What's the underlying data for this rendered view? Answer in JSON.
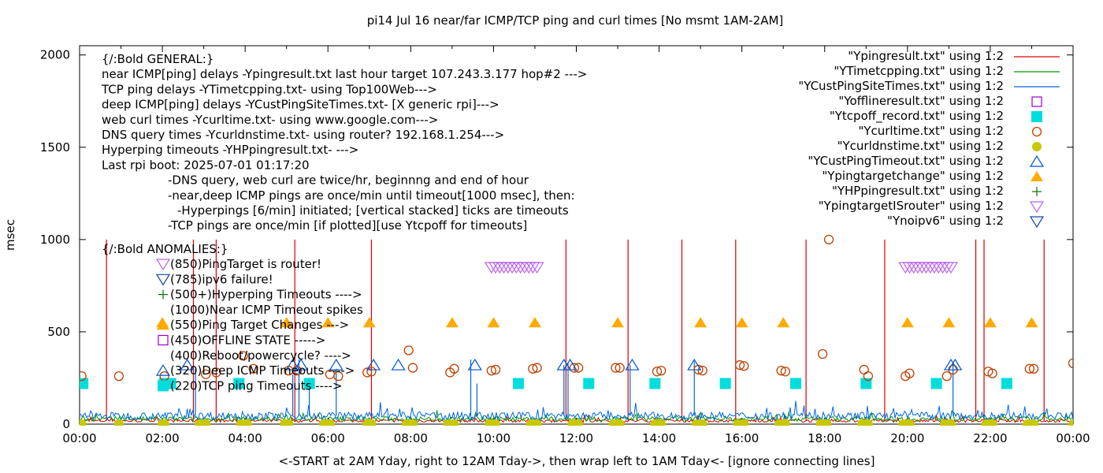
{
  "chart_data": {
    "type": "line",
    "title": "pi14 Jul 16  near/far ICMP/TCP ping and curl times [No msmt 1AM-2AM]",
    "xlabel": "<-START at 2AM Yday, right to 12AM Tday->, then wrap left to 1AM Tday<- [ignore connecting lines]",
    "ylabel": "msec",
    "xlim": [
      0,
      24
    ],
    "ylim": [
      0,
      2050
    ],
    "grid": false,
    "legend_position": "top-right",
    "x_tick_labels": [
      "00:00",
      "02:00",
      "04:00",
      "06:00",
      "08:00",
      "10:00",
      "12:00",
      "14:00",
      "16:00",
      "18:00",
      "20:00",
      "22:00",
      "00:00"
    ],
    "y_tick_values": [
      0,
      500,
      1000,
      1500,
      2000
    ],
    "y_tick_labels": [
      "0",
      "500",
      "1000",
      "1500",
      "2000"
    ],
    "annotation_lines": [
      "{/:Bold GENERAL:}",
      "near ICMP[ping] delays -Ypingresult.txt last hour target 107.243.3.177 hop#2 --->",
      "TCP ping delays -YTimetcpping.txt- using Top100Web--->",
      "deep ICMP[ping] delays -YCustPingSiteTimes.txt- [X generic rpi]--->",
      "web curl times -Ycurltime.txt- using www.google.com--->",
      "DNS query times -Ycurldnstime.txt- using router? 192.168.1.254--->",
      "Hyperping timeouts -YHPpingresult.txt- --->",
      "Last rpi boot: 2025-07-01 01:17:20",
      "-DNS query, web curl are twice/hr, beginnng and end of hour",
      "-near,deep ICMP pings are once/min until timeout[1000 msec], then:",
      "-Hyperpings [6/min] initiated; [vertical stacked] ticks are timeouts",
      "-TCP pings are once/min [if plotted][use Ytcpoff for timeouts]"
    ],
    "anomalies_header": "{/:Bold ANOMALIES:}",
    "anomalies": [
      {
        "marker": "triangle-down-violet",
        "text": "(850)PingTarget is router!"
      },
      {
        "marker": "triangle-down-blue",
        "text": "(785)ipv6 failure!"
      },
      {
        "marker": "plus-green",
        "text": "(500+)Hyperping Timeouts ---->"
      },
      {
        "marker": "none",
        "text": "(1000)Near ICMP Timeout spikes"
      },
      {
        "marker": "triangle-up-orange",
        "text": "(550)Ping Target Changes --->"
      },
      {
        "marker": "square-open-purple",
        "text": "(450)OFFLINE STATE ----->"
      },
      {
        "marker": "none",
        "text": "(400)Reboot/powercycle? ---->"
      },
      {
        "marker": "triangle-up-open-blue",
        "text": "(320)Deep ICMP Timeouts ---->"
      },
      {
        "marker": "square-cyan",
        "text": "(220)TCP ping Timeouts ---->"
      }
    ],
    "legend": [
      {
        "label": "\"Ypingresult.txt\" using 1:2",
        "style": "line",
        "color": "#dd0000"
      },
      {
        "label": "\"YTimetcpping.txt\" using 1:2",
        "style": "line",
        "color": "#009900"
      },
      {
        "label": "\"YCustPingSiteTimes.txt\" using 1:2",
        "style": "line",
        "color": "#0066dd"
      },
      {
        "label": "\"Yofflineresult.txt\" using 1:2",
        "style": "square-open",
        "color": "#9900cc"
      },
      {
        "label": "\"Ytcpoff_record.txt\" using 1:2",
        "style": "square",
        "color": "#00dddd"
      },
      {
        "label": "\"Ycurltime.txt\" using 1:2",
        "style": "circle-open",
        "color": "#c04000"
      },
      {
        "label": "\"Ycurldnstime.txt\" using 1:2",
        "style": "circle",
        "color": "#c8c800"
      },
      {
        "label": "\"YCustPingTimeout.txt\" using 1:2",
        "style": "triangle-up-open",
        "color": "#0055cc"
      },
      {
        "label": "\"Ypingtargetchange\" using 1:2",
        "style": "triangle-up",
        "color": "#ffaa00"
      },
      {
        "label": "\"YHPpingresult.txt\" using 1:2",
        "style": "plus",
        "color": "#007700"
      },
      {
        "label": "\"YpingtargetISrouter\" using 1:2",
        "style": "triangle-down-open",
        "color": "#bb66ee"
      },
      {
        "label": "\"Ynoipv6\" using 1:2",
        "style": "triangle-down-open",
        "color": "#1144aa"
      }
    ],
    "series": [
      {
        "name": "\"Ypingresult.txt\" using 1:2",
        "color": "#dd0000",
        "baseline": 18,
        "spikes": [
          0.65,
          2.75,
          3.3,
          5.2,
          7.05,
          11.75,
          13.25,
          14.55,
          15.85,
          17.55,
          19.45,
          21.65,
          21.85,
          23.3
        ]
      },
      {
        "name": "\"YTimetcpping.txt\" using 1:2",
        "color": "#009900",
        "baseline": 28
      },
      {
        "name": "\"YCustPingSiteTimes.txt\" using 1:2",
        "color": "#0066dd",
        "baseline": 45,
        "spikes": [
          {
            "x": 2.8,
            "y": 300
          },
          {
            "x": 5.15,
            "y": 270
          },
          {
            "x": 5.3,
            "y": 350
          },
          {
            "x": 5.55,
            "y": 220
          },
          {
            "x": 6.2,
            "y": 300
          },
          {
            "x": 9.45,
            "y": 350
          },
          {
            "x": 9.6,
            "y": 220
          },
          {
            "x": 11.7,
            "y": 320
          },
          {
            "x": 11.8,
            "y": 330
          },
          {
            "x": 13.3,
            "y": 320
          },
          {
            "x": 14.85,
            "y": 340
          },
          {
            "x": 21.1,
            "y": 330
          }
        ]
      },
      {
        "name": "\"Ytcpoff_record.txt\" using 1:2",
        "type": "scatter",
        "color": "#00dddd",
        "y": 220,
        "x": [
          0.08,
          2.05,
          2.2,
          3.85,
          5.55,
          10.6,
          12.3,
          13.9,
          15.6,
          17.3,
          19.0,
          20.7,
          22.4
        ]
      },
      {
        "name": "\"Ycurltime.txt\" using 1:2",
        "type": "scatter",
        "color": "#c04000",
        "points": [
          [
            0.05,
            260
          ],
          [
            0.95,
            260
          ],
          [
            2.05,
            260
          ],
          [
            3.05,
            270
          ],
          [
            3.3,
            280
          ],
          [
            3.95,
            370
          ],
          [
            4.2,
            300
          ],
          [
            5.05,
            290
          ],
          [
            5.25,
            290
          ],
          [
            6.05,
            270
          ],
          [
            6.25,
            260
          ],
          [
            6.95,
            280
          ],
          [
            7.05,
            285
          ],
          [
            7.95,
            400
          ],
          [
            8.05,
            305
          ],
          [
            8.95,
            280
          ],
          [
            9.05,
            300
          ],
          [
            9.95,
            290
          ],
          [
            10.05,
            295
          ],
          [
            10.95,
            300
          ],
          [
            11.05,
            305
          ],
          [
            11.95,
            305
          ],
          [
            12.05,
            305
          ],
          [
            12.95,
            305
          ],
          [
            13.05,
            305
          ],
          [
            13.95,
            285
          ],
          [
            14.05,
            290
          ],
          [
            14.95,
            295
          ],
          [
            15.05,
            290
          ],
          [
            15.95,
            320
          ],
          [
            16.05,
            315
          ],
          [
            16.95,
            290
          ],
          [
            17.05,
            285
          ],
          [
            17.95,
            380
          ],
          [
            18.1,
            1000
          ],
          [
            18.95,
            295
          ],
          [
            19.05,
            260
          ],
          [
            19.95,
            260
          ],
          [
            20.05,
            275
          ],
          [
            20.95,
            260
          ],
          [
            21.1,
            295
          ],
          [
            21.95,
            285
          ],
          [
            22.05,
            275
          ],
          [
            22.95,
            300
          ],
          [
            23.05,
            300
          ],
          [
            24.0,
            330
          ]
        ]
      },
      {
        "name": "\"Ycurldnstime.txt\" using 1:2",
        "type": "scatter",
        "color": "#c8c800",
        "y": 0,
        "x": [
          0.05,
          0.95,
          2.0,
          2.05,
          2.9,
          3.0,
          3.05,
          3.9,
          4.0,
          4.05,
          4.95,
          5.0,
          5.05,
          5.9,
          6.0,
          6.05,
          6.95,
          7.0,
          7.05,
          7.9,
          8.0,
          8.05,
          8.9,
          9.0,
          9.05,
          9.9,
          10.0,
          10.05,
          10.9,
          11.0,
          11.05,
          11.9,
          12.0,
          12.05,
          12.9,
          13.0,
          13.05,
          13.9,
          14.0,
          14.05,
          14.9,
          15.0,
          15.05,
          15.9,
          16.0,
          16.05,
          16.9,
          17.0,
          17.05,
          17.9,
          18.0,
          18.05,
          18.9,
          19.0,
          19.05,
          19.9,
          20.0,
          20.05,
          20.9,
          21.0,
          21.05,
          21.9,
          22.0,
          22.05,
          22.9,
          23.0,
          23.05,
          24.0
        ]
      },
      {
        "name": "\"YCustPingTimeout.txt\" using 1:2",
        "type": "scatter",
        "color": "#0055cc",
        "y": 320,
        "x": [
          2.6,
          5.15,
          5.35,
          6.2,
          7.1,
          7.7,
          9.55,
          11.7,
          11.85,
          13.35,
          14.85,
          21.05,
          21.15
        ]
      },
      {
        "name": "\"Ypingtargetchange\" using 1:2",
        "type": "scatter",
        "color": "#ffaa00",
        "y": 550,
        "x": [
          2.0,
          5.0,
          6.0,
          7.0,
          9.0,
          10.0,
          11.0,
          13.0,
          15.0,
          16.0,
          17.0,
          20.0,
          21.0,
          22.0,
          23.0
        ]
      },
      {
        "name": "\"YpingtargetISrouter\" using 1:2",
        "type": "scatter",
        "color": "#bb66ee",
        "y": 850,
        "x": [
          9.95,
          10.05,
          10.15,
          10.25,
          10.35,
          10.45,
          10.55,
          10.65,
          10.75,
          10.85,
          10.95,
          11.05,
          19.95,
          20.05,
          20.15,
          20.25,
          20.35,
          20.45,
          20.55,
          20.65,
          20.75,
          20.85,
          20.95,
          21.05
        ]
      }
    ]
  }
}
